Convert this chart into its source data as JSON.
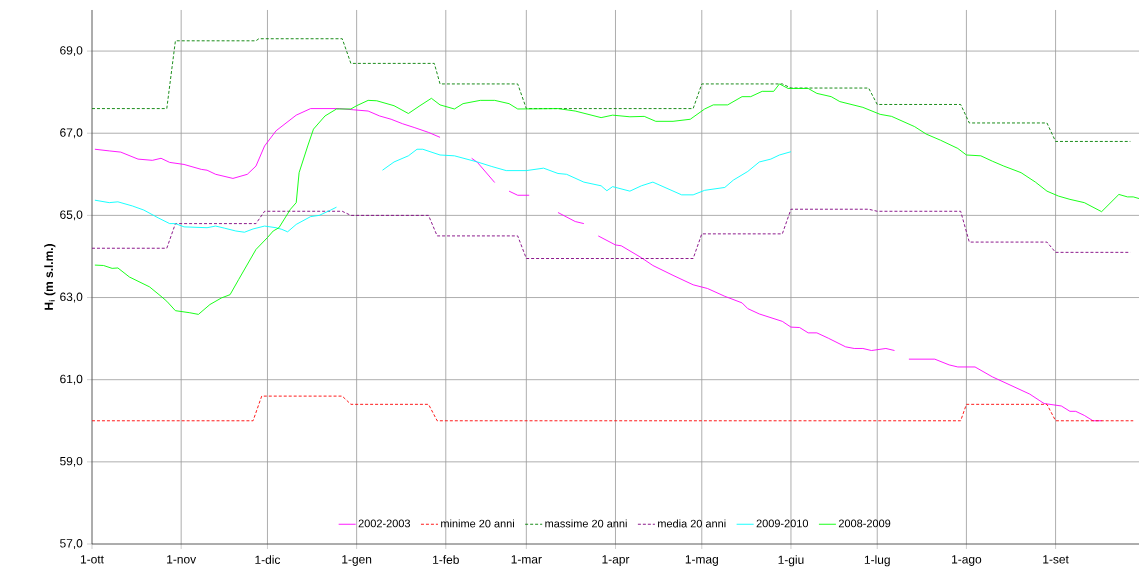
{
  "chart_data": {
    "type": "line",
    "ylabel": "H$_{i}$  (m s.l.m.)",
    "xlim": [
      "2001-10-01",
      "2002-09-30"
    ],
    "ylim": [
      57,
      70
    ],
    "xticks": [
      {
        "value": "2001-10-01",
        "label": "1-ott"
      },
      {
        "value": "2001-11-01",
        "label": "1-nov"
      },
      {
        "value": "2001-12-01",
        "label": "1-dic"
      },
      {
        "value": "2002-01-01",
        "label": "1-gen"
      },
      {
        "value": "2002-02-01",
        "label": "1-feb"
      },
      {
        "value": "2002-03-01",
        "label": "1-mar"
      },
      {
        "value": "2002-04-01",
        "label": "1-apr"
      },
      {
        "value": "2002-05-01",
        "label": "1-mag"
      },
      {
        "value": "2002-06-01",
        "label": "1-giu"
      },
      {
        "value": "2002-07-01",
        "label": "1-lug"
      },
      {
        "value": "2002-08-01",
        "label": "1-ago"
      },
      {
        "value": "2002-09-01",
        "label": "1-set"
      }
    ],
    "yticks": [
      {
        "value": 57,
        "label": "57,0"
      },
      {
        "value": 59,
        "label": "59,0"
      },
      {
        "value": 61,
        "label": "61,0"
      },
      {
        "value": 63,
        "label": "63,0"
      },
      {
        "value": 65,
        "label": "65,0"
      },
      {
        "value": 67,
        "label": "67,0"
      },
      {
        "value": 69,
        "label": "69,0"
      }
    ],
    "grid": true,
    "legend": "bottom",
    "marker": "none",
    "series": [
      {
        "name": "2002-2003",
        "color": "#ff00ff",
        "line_style": "solid",
        "x": [
          "2001-10-02",
          "2001-10-07",
          "2001-10-11",
          "2001-10-17",
          "2001-10-22",
          "2001-10-25",
          "2001-10-28",
          "2001-11-02",
          "2001-11-08",
          "2001-11-10",
          "2001-11-13",
          "2001-11-19",
          "2001-11-24",
          "2001-11-27",
          "2001-11-30",
          "2001-12-04",
          "2001-12-11",
          "2001-12-16",
          "2001-12-26",
          "2001-12-31",
          "2002-01-05",
          "2002-01-09",
          "2002-01-13",
          "2002-01-17",
          "2002-01-21",
          "2002-01-26",
          "2002-01-30",
          "2002-02-04",
          "2002-02-10",
          "2002-02-12",
          "2002-02-18",
          "2002-02-21",
          "2002-02-23",
          "2002-02-26",
          "2002-03-02",
          "2002-03-06",
          "2002-03-12",
          "2002-03-18",
          "2002-03-21",
          "2002-03-24",
          "2002-03-26",
          "2002-04-01",
          "2002-04-03",
          "2002-04-10",
          "2002-04-14",
          "2002-04-21",
          "2002-04-28",
          "2002-05-03",
          "2002-05-09",
          "2002-05-15",
          "2002-05-17",
          "2002-05-21",
          "2002-05-29",
          "2002-06-01",
          "2002-06-04",
          "2002-06-07",
          "2002-06-10",
          "2002-06-14",
          "2002-06-20",
          "2002-06-23",
          "2002-06-26",
          "2002-06-29",
          "2002-07-04",
          "2002-07-07",
          "2002-07-09",
          "2002-07-12",
          "2002-07-21",
          "2002-07-26",
          "2002-07-29",
          "2002-08-04",
          "2002-08-10",
          "2002-08-23",
          "2002-08-28",
          "2002-09-03",
          "2002-09-06",
          "2002-09-08",
          "2002-09-11",
          "2002-09-14",
          "2002-09-17"
        ],
        "values": [
          66.61,
          66.57,
          66.54,
          66.37,
          66.34,
          66.39,
          66.29,
          66.24,
          66.12,
          66.1,
          66.0,
          65.9,
          66.0,
          66.2,
          66.69,
          67.06,
          67.44,
          67.6,
          67.6,
          67.57,
          67.54,
          67.42,
          67.34,
          67.23,
          67.14,
          67.02,
          66.9,
          null,
          66.39,
          66.29,
          65.8,
          null,
          65.59,
          65.49,
          65.49,
          null,
          65.07,
          64.85,
          64.8,
          null,
          64.5,
          64.28,
          64.26,
          63.97,
          63.78,
          63.54,
          63.31,
          63.22,
          63.03,
          62.87,
          62.73,
          62.6,
          62.42,
          62.28,
          62.27,
          62.14,
          62.14,
          62.01,
          61.8,
          61.76,
          61.76,
          61.71,
          61.76,
          61.71,
          null,
          61.5,
          61.5,
          61.36,
          61.31,
          61.31,
          61.07,
          60.65,
          60.42,
          60.36,
          60.23,
          60.23,
          60.13,
          60.0,
          60.0
        ]
      },
      {
        "name": "minime 20 anni",
        "color": "#ff0000",
        "line_style": "dashed",
        "x": [
          "2001-10-01",
          "2001-11-26",
          "2001-11-29",
          "2001-12-27",
          "2001-12-30",
          "2002-01-26",
          "2002-01-29",
          "2002-07-30",
          "2002-08-01",
          "2002-08-29",
          "2002-09-01",
          "2002-09-28"
        ],
        "values": [
          60.0,
          60.0,
          60.6,
          60.6,
          60.4,
          60.4,
          60.0,
          60.0,
          60.4,
          60.4,
          60.0,
          60.0
        ]
      },
      {
        "name": "massime 20 anni",
        "color": "#008000",
        "line_style": "dashed",
        "x": [
          "2001-10-01",
          "2001-10-27",
          "2001-10-30",
          "2001-11-27",
          "2001-11-28",
          "2001-12-27",
          "2001-12-30",
          "2002-01-28",
          "2002-01-30",
          "2002-02-26",
          "2002-03-01",
          "2002-04-28",
          "2002-05-01",
          "2002-05-29",
          "2002-06-01",
          "2002-06-28",
          "2002-07-01",
          "2002-07-30",
          "2002-08-02",
          "2002-08-29",
          "2002-09-01",
          "2002-09-27"
        ],
        "values": [
          67.6,
          67.6,
          69.25,
          69.25,
          69.3,
          69.3,
          68.7,
          68.7,
          68.2,
          68.2,
          67.6,
          67.6,
          68.2,
          68.2,
          68.1,
          68.1,
          67.7,
          67.7,
          67.25,
          67.25,
          66.8,
          66.8
        ]
      },
      {
        "name": "media 20 anni",
        "color": "#800080",
        "line_style": "dashed",
        "x": [
          "2001-10-01",
          "2001-10-27",
          "2001-10-30",
          "2001-11-27",
          "2001-11-30",
          "2001-12-27",
          "2001-12-30",
          "2002-01-26",
          "2002-01-29",
          "2002-02-26",
          "2002-03-01",
          "2002-04-28",
          "2002-05-01",
          "2002-05-29",
          "2002-06-01",
          "2002-06-28",
          "2002-07-01",
          "2002-07-30",
          "2002-08-02",
          "2002-08-29",
          "2002-09-01",
          "2002-09-27"
        ],
        "values": [
          64.2,
          64.2,
          64.8,
          64.8,
          65.1,
          65.1,
          65.0,
          65.0,
          64.5,
          64.5,
          63.95,
          63.95,
          64.55,
          64.55,
          65.15,
          65.15,
          65.1,
          65.1,
          64.35,
          64.35,
          64.1,
          64.1
        ]
      },
      {
        "name": "2009-2010",
        "color": "#00ffff",
        "line_style": "solid",
        "x": [
          "2001-10-02",
          "2001-10-07",
          "2001-10-10",
          "2001-10-15",
          "2001-10-19",
          "2001-10-24",
          "2001-10-28",
          "2001-10-30",
          "2001-11-02",
          "2001-11-10",
          "2001-11-13",
          "2001-11-16",
          "2001-11-20",
          "2001-11-23",
          "2001-11-26",
          "2001-11-30",
          "2001-12-04",
          "2001-12-06",
          "2001-12-08",
          "2001-12-11",
          "2001-12-16",
          "2001-12-19",
          "2001-12-23",
          "2001-12-25",
          "2002-01-02",
          "2002-01-10",
          "2002-01-14",
          "2002-01-19",
          "2002-01-22",
          "2002-01-24",
          "2002-01-30",
          "2002-02-04",
          "2002-02-12",
          "2002-02-17",
          "2002-02-22",
          "2002-03-01",
          "2002-03-07",
          "2002-03-12",
          "2002-03-15",
          "2002-03-21",
          "2002-03-27",
          "2002-03-29",
          "2002-03-31",
          "2002-04-06",
          "2002-04-10",
          "2002-04-14",
          "2002-04-24",
          "2002-04-28",
          "2002-05-02",
          "2002-05-09",
          "2002-05-12",
          "2002-05-17",
          "2002-05-21",
          "2002-05-25",
          "2002-05-28",
          "2002-06-01"
        ],
        "values": [
          65.37,
          65.31,
          65.33,
          65.23,
          65.13,
          64.94,
          64.8,
          64.8,
          64.72,
          64.7,
          64.74,
          64.69,
          64.62,
          64.59,
          64.67,
          64.74,
          64.7,
          64.66,
          64.6,
          64.78,
          64.97,
          65.0,
          65.13,
          65.2,
          null,
          66.1,
          66.3,
          66.45,
          66.61,
          66.61,
          66.47,
          66.45,
          66.3,
          66.19,
          66.09,
          66.09,
          66.15,
          66.02,
          66.0,
          65.81,
          65.72,
          65.6,
          65.7,
          65.59,
          65.72,
          65.81,
          65.5,
          65.5,
          65.61,
          65.68,
          65.86,
          66.07,
          66.3,
          66.37,
          66.47,
          66.55
        ]
      },
      {
        "name": "2008-2009",
        "color": "#00ff00",
        "line_style": "solid",
        "x": [
          "2001-10-02",
          "2001-10-05",
          "2001-10-08",
          "2001-10-10",
          "2001-10-14",
          "2001-10-21",
          "2001-10-25",
          "2001-10-27",
          "2001-10-30",
          "2001-11-04",
          "2001-11-07",
          "2001-11-11",
          "2001-11-15",
          "2001-11-18",
          "2001-11-21",
          "2001-11-27",
          "2001-12-01",
          "2001-12-03",
          "2001-12-05",
          "2001-12-09",
          "2001-12-11",
          "2001-12-12",
          "2001-12-15",
          "2001-12-17",
          "2001-12-21",
          "2001-12-25",
          "2001-12-30",
          "2002-01-01",
          "2002-01-05",
          "2002-01-08",
          "2002-01-14",
          "2002-01-19",
          "2002-01-23",
          "2002-01-27",
          "2002-01-30",
          "2002-02-04",
          "2002-02-07",
          "2002-02-13",
          "2002-02-18",
          "2002-02-23",
          "2002-02-26",
          "2002-03-12",
          "2002-03-18",
          "2002-03-27",
          "2002-03-31",
          "2002-04-06",
          "2002-04-11",
          "2002-04-15",
          "2002-04-21",
          "2002-04-27",
          "2002-05-02",
          "2002-05-05",
          "2002-05-10",
          "2002-05-15",
          "2002-05-18",
          "2002-05-22",
          "2002-05-26",
          "2002-05-28",
          "2002-05-31",
          "2002-06-07",
          "2002-06-10",
          "2002-06-15",
          "2002-06-18",
          "2002-06-26",
          "2002-07-02",
          "2002-07-06",
          "2002-07-14",
          "2002-07-18",
          "2002-07-23",
          "2002-07-29",
          "2002-08-01",
          "2002-08-06",
          "2002-08-10",
          "2002-08-14",
          "2002-08-20",
          "2002-08-25",
          "2002-08-29",
          "2002-09-02",
          "2002-09-06",
          "2002-09-11",
          "2002-09-17",
          "2002-09-23",
          "2002-09-26",
          "2002-09-28",
          "2002-09-30"
        ],
        "values": [
          63.79,
          63.78,
          63.71,
          63.72,
          63.5,
          63.26,
          63.03,
          62.91,
          62.68,
          62.63,
          62.59,
          62.83,
          62.99,
          63.07,
          63.44,
          64.17,
          64.46,
          64.62,
          64.7,
          65.15,
          65.31,
          66.04,
          66.69,
          67.1,
          67.42,
          67.59,
          67.59,
          67.67,
          67.8,
          67.79,
          67.67,
          67.48,
          67.67,
          67.85,
          67.69,
          67.59,
          67.72,
          67.8,
          67.8,
          67.72,
          67.59,
          67.6,
          67.54,
          67.38,
          67.44,
          67.4,
          67.41,
          67.29,
          67.29,
          67.34,
          67.59,
          67.69,
          67.69,
          67.89,
          67.89,
          68.02,
          68.02,
          68.2,
          68.09,
          68.09,
          67.97,
          67.89,
          67.77,
          67.63,
          67.46,
          67.41,
          67.16,
          66.98,
          66.83,
          66.63,
          66.47,
          66.45,
          66.32,
          66.2,
          66.04,
          65.81,
          65.59,
          65.47,
          65.39,
          65.31,
          65.09,
          65.51,
          65.45,
          65.45,
          65.41
        ]
      }
    ]
  }
}
